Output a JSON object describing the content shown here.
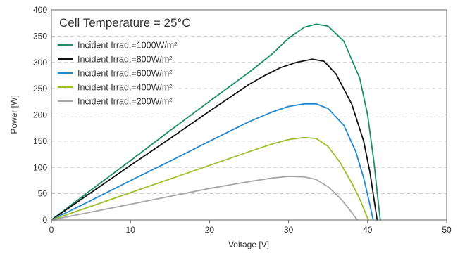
{
  "chart_data": {
    "type": "line",
    "title": "",
    "annotation": "Cell Temperature = 25°C",
    "xlabel": "Voltage [V]",
    "ylabel": "Power [W]",
    "xlim": [
      0,
      50
    ],
    "ylim": [
      0,
      400
    ],
    "xticks": [
      0,
      10,
      20,
      30,
      40,
      50
    ],
    "yticks": [
      0,
      50,
      100,
      150,
      200,
      250,
      300,
      350,
      400
    ],
    "grid": "horizontal-dashed",
    "legend_position": "top-left",
    "series": [
      {
        "name": "Incident Irrad.=1000W/m²",
        "color": "#1a8f6a",
        "x": [
          0,
          5,
          10,
          15,
          20,
          25,
          28,
          30,
          32,
          33.5,
          35,
          37,
          39,
          40,
          40.8,
          41.3,
          41.6
        ],
        "y": [
          0,
          57,
          113,
          170,
          226,
          281,
          317,
          346,
          367,
          373,
          369,
          340,
          270,
          200,
          110,
          40,
          0
        ]
      },
      {
        "name": "Incident Irrad.=800W/m²",
        "color": "#111111",
        "x": [
          0,
          5,
          10,
          15,
          20,
          25,
          27,
          29,
          31,
          33,
          34.5,
          36,
          38,
          39.5,
          40.3,
          40.8,
          41.2
        ],
        "y": [
          0,
          52,
          104,
          155,
          207,
          258,
          275,
          290,
          300,
          306,
          302,
          278,
          220,
          150,
          90,
          40,
          0
        ]
      },
      {
        "name": "Incident Irrad.=600W/m²",
        "color": "#2288d0",
        "x": [
          0,
          5,
          10,
          15,
          20,
          25,
          28,
          30,
          32,
          33.5,
          35,
          37,
          38.5,
          39.5,
          40.2,
          40.7
        ],
        "y": [
          0,
          37,
          75,
          112,
          150,
          187,
          206,
          216,
          221,
          221,
          212,
          180,
          130,
          80,
          35,
          0
        ]
      },
      {
        "name": "Incident Irrad.=400W/m²",
        "color": "#9cbf2a",
        "x": [
          0,
          5,
          10,
          15,
          20,
          25,
          28,
          30,
          32,
          33.5,
          35,
          36.5,
          38,
          39,
          39.6,
          40.1
        ],
        "y": [
          0,
          26,
          52,
          78,
          104,
          130,
          145,
          153,
          157,
          155,
          140,
          110,
          70,
          40,
          18,
          0
        ]
      },
      {
        "name": "Incident Irrad.=200W/m²",
        "color": "#a6a6a6",
        "x": [
          0,
          5,
          10,
          15,
          20,
          25,
          28,
          30,
          32,
          33.5,
          35,
          36.5,
          37.5,
          38.2,
          38.7
        ],
        "y": [
          0,
          15,
          30,
          45,
          60,
          73,
          80,
          83,
          82,
          77,
          63,
          42,
          24,
          10,
          0
        ]
      }
    ]
  }
}
